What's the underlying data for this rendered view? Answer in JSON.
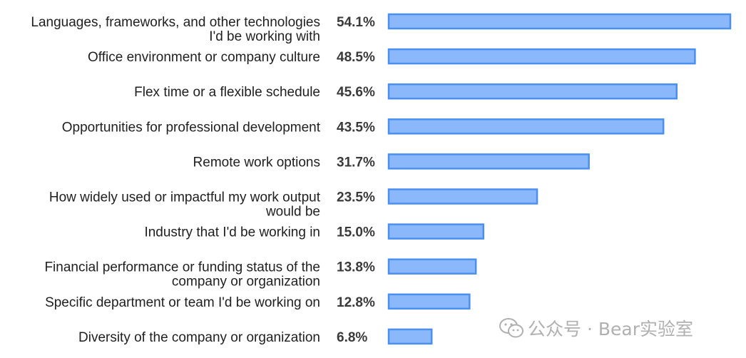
{
  "chart_data": {
    "type": "bar",
    "orientation": "horizontal",
    "title": "",
    "xlabel": "",
    "ylabel": "",
    "xlim": [
      0,
      54.1
    ],
    "unit": "%",
    "grid": false,
    "categories": [
      [
        "Languages, frameworks, and other technologies",
        "I'd be working with"
      ],
      [
        "Office environment or company culture"
      ],
      [
        "Flex time or a flexible schedule"
      ],
      [
        "Opportunities for professional development"
      ],
      [
        "Remote work options"
      ],
      [
        "How widely used or impactful my work output",
        "would be"
      ],
      [
        "Industry that I'd be working in"
      ],
      [
        "Financial performance or funding status of the",
        "company or organization"
      ],
      [
        "Specific department or team I'd be working on"
      ],
      [
        "Diversity of the company or organization"
      ]
    ],
    "values": [
      54.1,
      48.5,
      45.6,
      43.5,
      31.7,
      23.5,
      15.0,
      13.8,
      12.8,
      6.8
    ],
    "value_labels": [
      "54.1%",
      "48.5%",
      "45.6%",
      "43.5%",
      "31.7%",
      "23.5%",
      "15.0%",
      "13.8%",
      "12.8%",
      "6.8%"
    ],
    "bar_color": "#8ab8fb",
    "bar_border_color": "#4a90f0"
  },
  "watermark": {
    "text": "公众号 · Bear实验室",
    "icon": "wechat-icon"
  }
}
